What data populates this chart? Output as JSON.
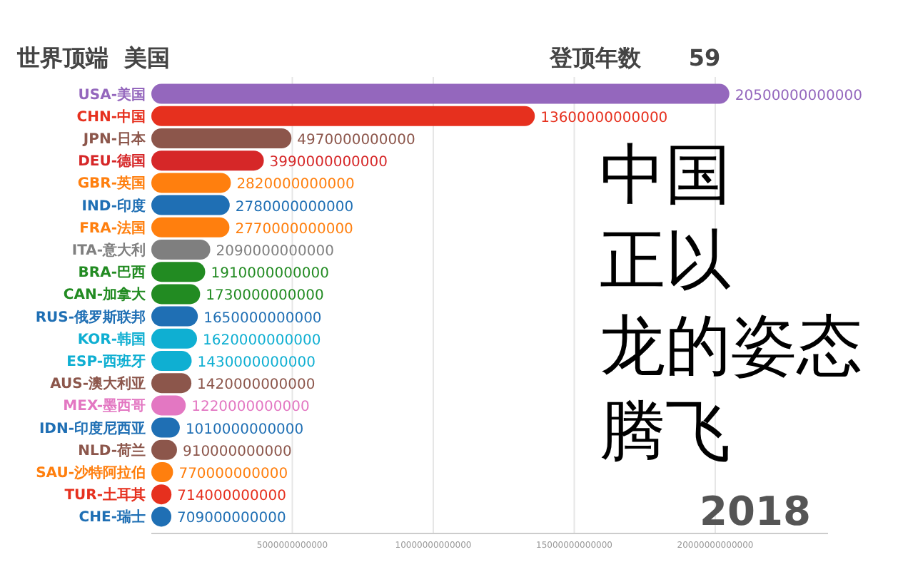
{
  "chart_data": {
    "type": "bar",
    "orientation": "horizontal",
    "title": "世界顶端  美国",
    "subtitle": "登顶年数      59",
    "categories": [
      "USA-美国",
      "CHN-中国",
      "JPN-日本",
      "DEU-德国",
      "GBR-英国",
      "IND-印度",
      "FRA-法国",
      "ITA-意大利",
      "BRA-巴西",
      "CAN-加拿大",
      "RUS-俄罗斯联邦",
      "KOR-韩国",
      "ESP-西班牙",
      "AUS-澳大利亚",
      "MEX-墨西哥",
      "IDN-印度尼西亚",
      "NLD-荷兰",
      "SAU-沙特阿拉伯",
      "TUR-土耳其",
      "CHE-瑞士"
    ],
    "values": [
      20500000000000,
      13600000000000,
      4970000000000,
      3990000000000,
      2820000000000,
      2780000000000,
      2770000000000,
      2090000000000,
      1910000000000,
      1730000000000,
      1650000000000,
      1620000000000,
      1430000000000,
      1420000000000,
      1220000000000,
      1010000000000,
      910000000000,
      770000000000,
      714000000000,
      709000000000
    ],
    "colors": [
      "#9467bd",
      "#e6301e",
      "#8c564b",
      "#d62728",
      "#ff7f0e",
      "#1f6fb4",
      "#ff7f0e",
      "#7f7f7f",
      "#228b22",
      "#228b22",
      "#1f6fb4",
      "#0fafd2",
      "#0fafd2",
      "#8c564b",
      "#e377c2",
      "#1f6fb4",
      "#8c564b",
      "#ff7f0e",
      "#e6301e",
      "#1f6fb4"
    ],
    "data_labels": true,
    "xlim": [
      0,
      24000000000000
    ],
    "xticks": [
      5000000000000,
      10000000000000,
      15000000000000,
      20000000000000
    ],
    "grid": "x",
    "annotations": [
      "中国",
      "正以",
      "龙的姿态",
      "腾飞",
      "2018"
    ]
  }
}
